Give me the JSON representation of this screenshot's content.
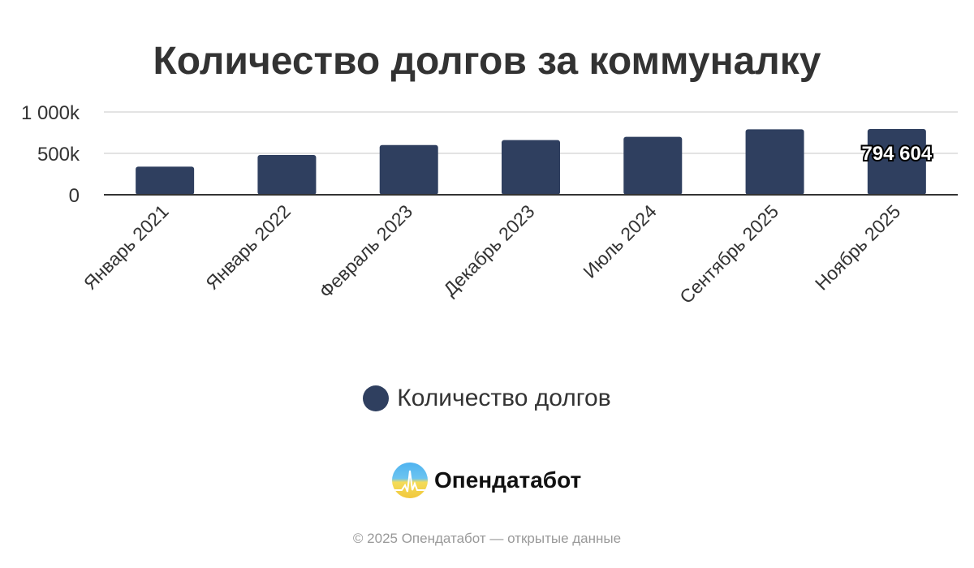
{
  "chart_data": {
    "type": "bar",
    "title": "Количество долгов за коммуналку",
    "categories": [
      "Январь 2021",
      "Январь 2022",
      "Февраль 2023",
      "Декабрь 2023",
      "Июль 2024",
      "Сентябрь 2025",
      "Ноябрь 2025"
    ],
    "series": [
      {
        "name": "Количество долгов",
        "values": [
          340000,
          480000,
          600000,
          660000,
          700000,
          790000,
          794604
        ],
        "color": "#2f3f5f"
      }
    ],
    "ylim": [
      0,
      1000000
    ],
    "yticks": [
      "0",
      "500k",
      "1 000k"
    ],
    "grid": true,
    "legend": "bottom",
    "data_labels": [
      {
        "index": 6,
        "text": "794 604"
      }
    ]
  },
  "brand": {
    "name": "Опендатабот",
    "colors": [
      "#4fb3f0",
      "#f2c83c"
    ]
  },
  "footer": "© 2025 Опендатабот — открытые данные"
}
